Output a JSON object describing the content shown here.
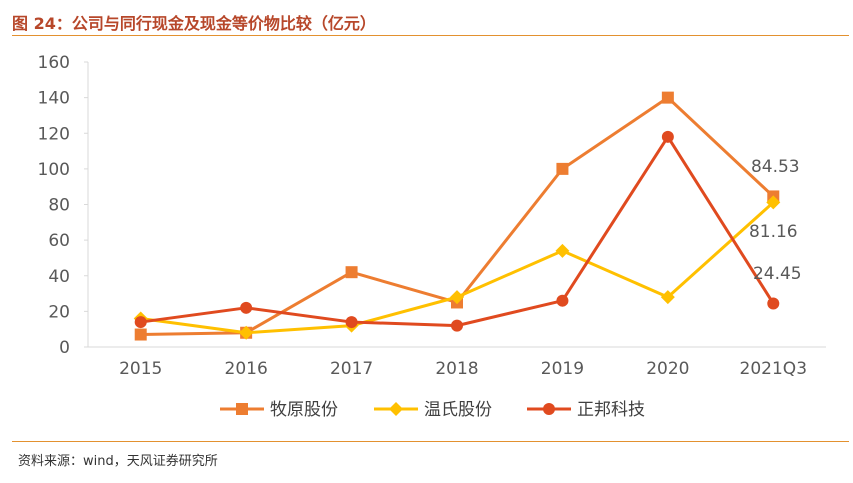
{
  "title": "图 24：公司与同行现金及现金等价物比较（亿元）",
  "source": "资料来源：wind，天风证券研究所",
  "colors": {
    "title": "#b7472a",
    "rule": "#e3912f",
    "axis": "#d9d9d9",
    "text": "#595959"
  },
  "chart_data": {
    "type": "line",
    "title": "图 24：公司与同行现金及现金等价物比较（亿元）",
    "xlabel": "",
    "ylabel": "",
    "categories": [
      "2015",
      "2016",
      "2017",
      "2018",
      "2019",
      "2020",
      "2021Q3"
    ],
    "ylim": [
      0,
      160
    ],
    "yticks": [
      "0",
      "20",
      "40",
      "60",
      "80",
      "100",
      "120",
      "140",
      "160"
    ],
    "grid": false,
    "legend_position": "bottom",
    "series": [
      {
        "name": "牧原股份",
        "color": "#ed7d31",
        "marker": "square",
        "values": [
          7,
          8,
          42,
          25,
          100,
          140,
          84.53
        ]
      },
      {
        "name": "温氏股份",
        "color": "#ffc000",
        "marker": "diamond",
        "values": [
          16,
          8,
          12,
          28,
          54,
          28,
          81.16
        ]
      },
      {
        "name": "正邦科技",
        "color": "#e04a1f",
        "marker": "circle",
        "values": [
          14,
          22,
          14,
          12,
          26,
          118,
          24.45
        ]
      }
    ],
    "data_labels": [
      {
        "text": "84.53",
        "series": 0,
        "index": 6
      },
      {
        "text": "81.16",
        "series": 1,
        "index": 6
      },
      {
        "text": "24.45",
        "series": 2,
        "index": 6
      }
    ]
  }
}
